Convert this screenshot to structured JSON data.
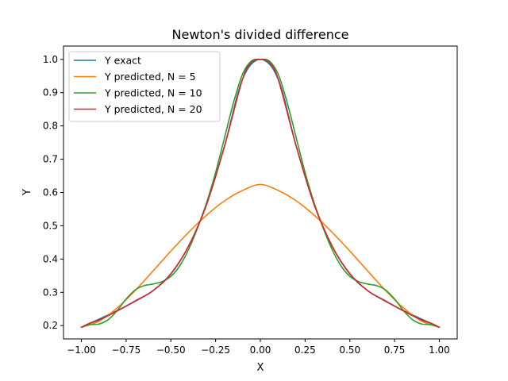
{
  "chart_data": {
    "type": "line",
    "title": "Newton's divided difference",
    "xlabel": "X",
    "ylabel": "Y",
    "xlim": [
      -1.1,
      1.1
    ],
    "ylim": [
      0.16,
      1.04
    ],
    "x_ticks": [
      -1.0,
      -0.75,
      -0.5,
      -0.25,
      0.0,
      0.25,
      0.5,
      0.75,
      1.0
    ],
    "x_tick_labels": [
      "−1.00",
      "−0.75",
      "−0.50",
      "−0.25",
      "0.00",
      "0.25",
      "0.50",
      "0.75",
      "1.00"
    ],
    "y_ticks": [
      0.2,
      0.3,
      0.4,
      0.5,
      0.6,
      0.7,
      0.8,
      0.9,
      1.0
    ],
    "y_tick_labels": [
      "0.2",
      "0.3",
      "0.4",
      "0.5",
      "0.6",
      "0.7",
      "0.8",
      "0.9",
      "1.0"
    ],
    "grid": false,
    "legend_position": "top-left",
    "series": [
      {
        "name": "Y exact",
        "color": "#1f77b4",
        "x": [
          -1.0,
          -0.9,
          -0.8,
          -0.7,
          -0.6,
          -0.5,
          -0.4,
          -0.3,
          -0.2,
          -0.1,
          0.0,
          0.1,
          0.2,
          0.3,
          0.4,
          0.5,
          0.6,
          0.7,
          0.8,
          0.9,
          1.0
        ],
        "y": [
          0.195,
          0.22,
          0.245,
          0.273,
          0.305,
          0.355,
          0.44,
          0.565,
          0.74,
          0.94,
          1.0,
          0.94,
          0.74,
          0.565,
          0.44,
          0.355,
          0.305,
          0.273,
          0.245,
          0.22,
          0.195
        ]
      },
      {
        "name": "Y predicted, N = 5",
        "color": "#ff7f0e",
        "x": [
          -1.0,
          -0.9,
          -0.8,
          -0.7,
          -0.6,
          -0.5,
          -0.4,
          -0.3,
          -0.2,
          -0.1,
          0.0,
          0.1,
          0.2,
          0.3,
          0.4,
          0.5,
          0.6,
          0.7,
          0.8,
          0.9,
          1.0
        ],
        "y": [
          0.195,
          0.214,
          0.253,
          0.305,
          0.364,
          0.424,
          0.481,
          0.532,
          0.575,
          0.606,
          0.624,
          0.606,
          0.575,
          0.532,
          0.481,
          0.424,
          0.364,
          0.305,
          0.253,
          0.214,
          0.195
        ]
      },
      {
        "name": "Y predicted, N = 10",
        "color": "#2ca02c",
        "x": [
          -1.0,
          -0.95,
          -0.9,
          -0.85,
          -0.8,
          -0.75,
          -0.7,
          -0.65,
          -0.6,
          -0.55,
          -0.5,
          -0.45,
          -0.4,
          -0.35,
          -0.3,
          -0.25,
          -0.2,
          -0.15,
          -0.1,
          -0.05,
          0.0,
          0.05,
          0.1,
          0.15,
          0.2,
          0.25,
          0.3,
          0.35,
          0.4,
          0.45,
          0.5,
          0.55,
          0.6,
          0.65,
          0.7,
          0.75,
          0.8,
          0.85,
          0.9,
          0.95,
          1.0
        ],
        "y": [
          0.195,
          0.203,
          0.205,
          0.218,
          0.245,
          0.28,
          0.307,
          0.32,
          0.325,
          0.332,
          0.348,
          0.38,
          0.43,
          0.495,
          0.57,
          0.66,
          0.765,
          0.87,
          0.955,
          0.995,
          1.0,
          0.995,
          0.955,
          0.87,
          0.765,
          0.66,
          0.57,
          0.495,
          0.43,
          0.38,
          0.348,
          0.332,
          0.325,
          0.32,
          0.307,
          0.28,
          0.245,
          0.218,
          0.205,
          0.203,
          0.195
        ]
      },
      {
        "name": "Y predicted, N = 20",
        "color": "#d62728",
        "x": [
          -1.0,
          -0.95,
          -0.9,
          -0.8,
          -0.7,
          -0.6,
          -0.5,
          -0.4,
          -0.3,
          -0.2,
          -0.1,
          -0.05,
          0.0,
          0.05,
          0.1,
          0.2,
          0.3,
          0.4,
          0.5,
          0.6,
          0.7,
          0.8,
          0.9,
          0.95,
          1.0
        ],
        "y": [
          0.195,
          0.208,
          0.217,
          0.244,
          0.274,
          0.305,
          0.356,
          0.44,
          0.565,
          0.74,
          0.94,
          0.99,
          1.0,
          0.99,
          0.94,
          0.74,
          0.565,
          0.44,
          0.356,
          0.305,
          0.274,
          0.244,
          0.217,
          0.208,
          0.195
        ]
      }
    ]
  }
}
